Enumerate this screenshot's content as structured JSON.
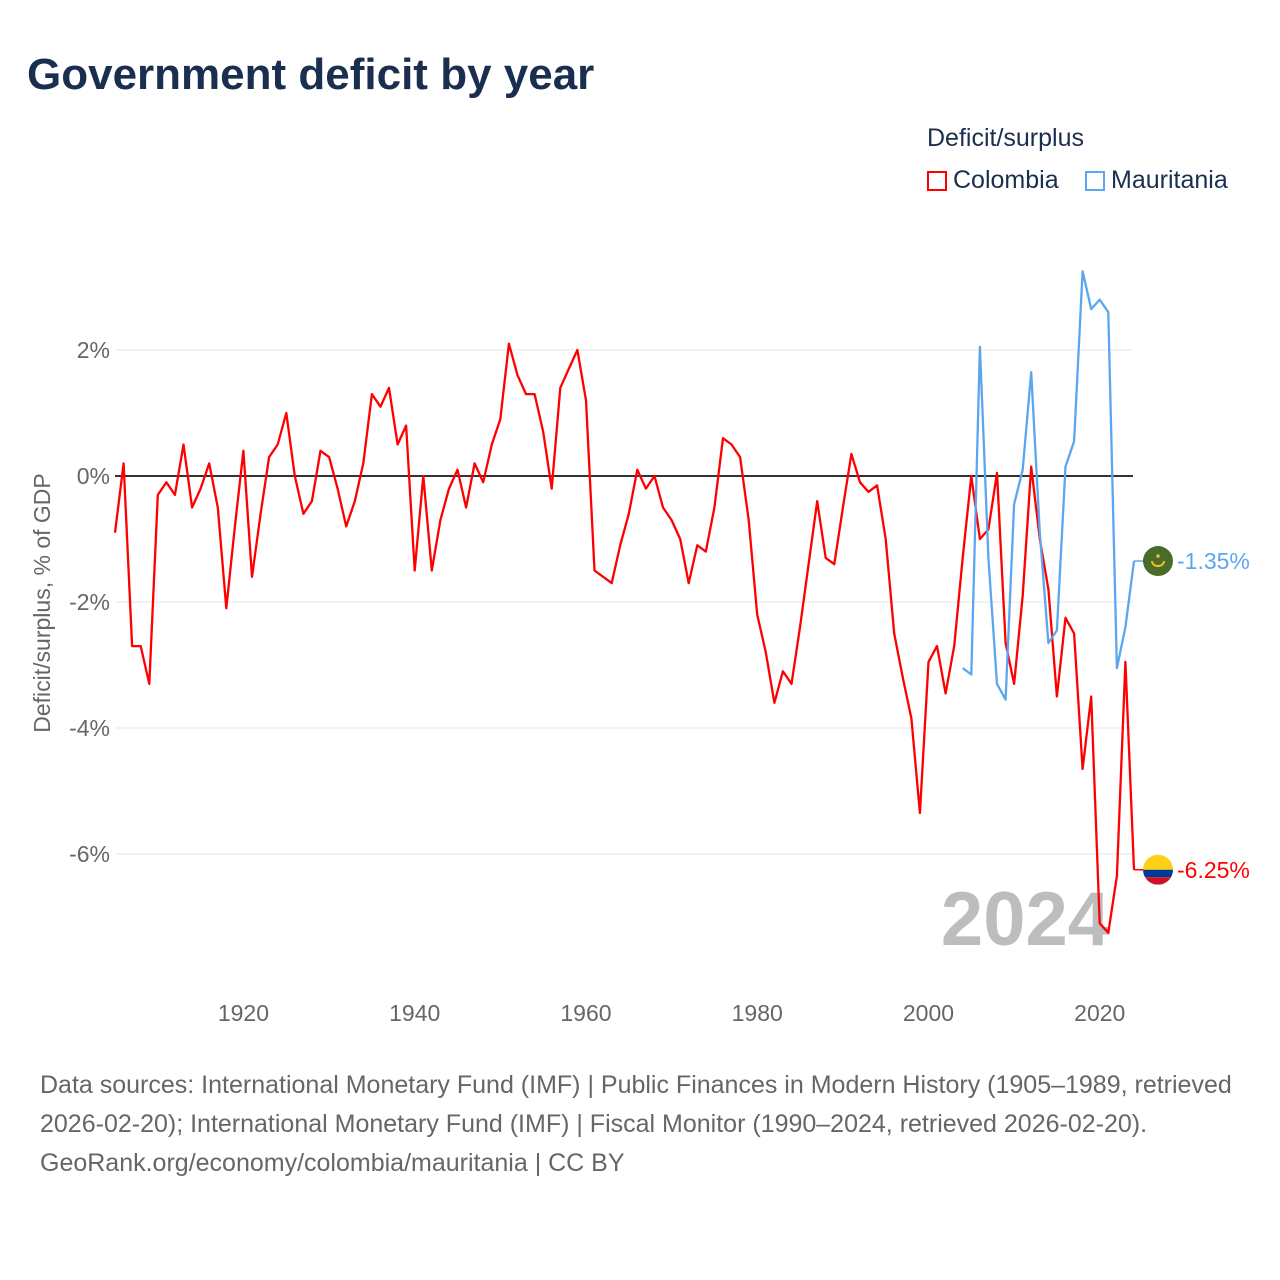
{
  "title": "Government deficit by year",
  "legend": {
    "title": "Deficit/surplus",
    "items": [
      {
        "name": "Colombia",
        "color": "#ff0000"
      },
      {
        "name": "Mauritania",
        "color": "#5ba7ef"
      }
    ]
  },
  "footer": {
    "sources": "Data sources: International Monetary Fund (IMF) | Public Finances in Modern History (1905–1989, retrieved 2026-02-20); International Monetary Fund (IMF) | Fiscal Monitor (1990–2024, retrieved 2026-02-20).",
    "attribution": "GeoRank.org/economy/colombia/mauritania | CC BY"
  },
  "chart_data": {
    "type": "line",
    "title": "Government deficit by year",
    "xlabel": "",
    "ylabel": "Deficit/surplus, % of GDP",
    "year_watermark": "2024",
    "xlim": [
      1905,
      2024
    ],
    "ylim": [
      -8.1,
      3.7
    ],
    "xticks": [
      1920,
      1940,
      1960,
      1980,
      2000,
      2020
    ],
    "yticks": [
      {
        "v": 2,
        "label": "2%"
      },
      {
        "v": 0,
        "label": "0%"
      },
      {
        "v": -2,
        "label": "-2%"
      },
      {
        "v": -4,
        "label": "-4%"
      },
      {
        "v": -6,
        "label": "-6%"
      }
    ],
    "grid": true,
    "legend_position": "top-right",
    "series": [
      {
        "name": "Colombia",
        "color": "#ff0000",
        "start_year": 1905,
        "end_label": "-6.25%",
        "flag": "colombia-flag",
        "values": [
          -0.9,
          0.2,
          -2.7,
          -2.7,
          -3.3,
          -0.3,
          -0.1,
          -0.3,
          0.5,
          -0.5,
          -0.2,
          0.2,
          -0.5,
          -2.1,
          -0.8,
          0.4,
          -1.6,
          -0.6,
          0.3,
          0.5,
          1.0,
          0.0,
          -0.6,
          -0.4,
          0.4,
          0.3,
          -0.2,
          -0.8,
          -0.4,
          0.2,
          1.3,
          1.1,
          1.4,
          0.5,
          0.8,
          -1.5,
          0.0,
          -1.5,
          -0.7,
          -0.2,
          0.1,
          -0.5,
          0.2,
          -0.1,
          0.5,
          0.9,
          2.1,
          1.6,
          1.3,
          1.3,
          0.7,
          -0.2,
          1.4,
          1.7,
          2.0,
          1.2,
          -1.5,
          -1.6,
          -1.7,
          -1.1,
          -0.6,
          0.1,
          -0.2,
          0.0,
          -0.5,
          -0.7,
          -1.0,
          -1.7,
          -1.1,
          -1.2,
          -0.5,
          0.6,
          0.5,
          0.3,
          -0.7,
          -2.2,
          -2.8,
          -3.6,
          -3.1,
          -3.3,
          -2.4,
          -1.4,
          -0.4,
          -1.3,
          -1.4,
          -0.5,
          0.35,
          -0.1,
          -0.25,
          -0.15,
          -1.0,
          -2.5,
          -3.2,
          -3.85,
          -5.35,
          -2.95,
          -2.7,
          -3.45,
          -2.7,
          -1.3,
          0.0,
          -1.0,
          -0.85,
          0.05,
          -2.65,
          -3.3,
          -1.9,
          0.15,
          -1.0,
          -1.8,
          -3.5,
          -2.25,
          -2.5,
          -4.65,
          -3.5,
          -7.1,
          -7.25,
          -6.35,
          -2.95,
          -6.25
        ]
      },
      {
        "name": "Mauritania",
        "color": "#5ba7ef",
        "start_year": 2004,
        "end_label": "-1.35%",
        "flag": "mauritania-flag",
        "values": [
          -3.05,
          -3.15,
          2.05,
          -1.3,
          -3.3,
          -3.55,
          -0.45,
          0.1,
          1.65,
          -0.9,
          -2.65,
          -2.45,
          0.15,
          0.55,
          3.25,
          2.65,
          2.8,
          2.6,
          -3.05,
          -2.4,
          -1.35
        ]
      }
    ]
  }
}
